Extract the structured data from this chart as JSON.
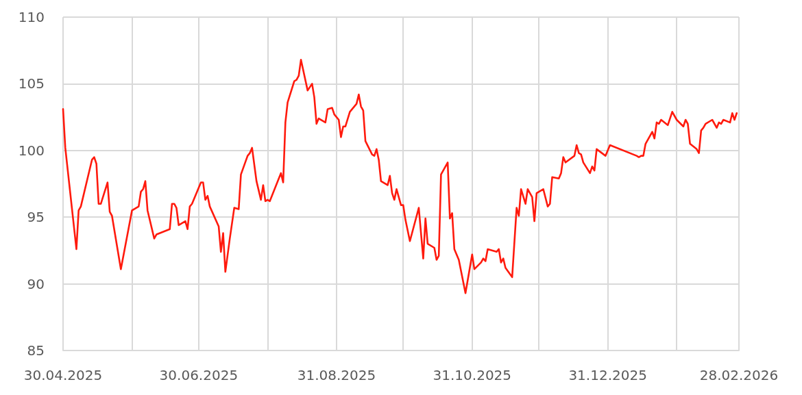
{
  "chart_data": {
    "type": "line",
    "x": [
      "2025-04-30",
      "2025-05-01",
      "2025-05-06",
      "2025-05-07",
      "2025-05-08",
      "2025-05-13",
      "2025-05-14",
      "2025-05-15",
      "2025-05-16",
      "2025-05-17",
      "2025-05-20",
      "2025-05-21",
      "2025-05-22",
      "2025-05-26",
      "2025-05-31",
      "2025-06-03",
      "2025-06-04",
      "2025-06-05",
      "2025-06-06",
      "2025-06-07",
      "2025-06-10",
      "2025-06-11",
      "2025-06-17",
      "2025-06-18",
      "2025-06-19",
      "2025-06-20",
      "2025-06-21",
      "2025-06-24",
      "2025-06-25",
      "2025-06-26",
      "2025-06-27",
      "2025-07-01",
      "2025-07-02",
      "2025-07-03",
      "2025-07-04",
      "2025-07-05",
      "2025-07-09",
      "2025-07-10",
      "2025-07-11",
      "2025-07-12",
      "2025-07-14",
      "2025-07-16",
      "2025-07-18",
      "2025-07-19",
      "2025-07-22",
      "2025-07-23",
      "2025-07-24",
      "2025-07-26",
      "2025-07-28",
      "2025-07-29",
      "2025-07-30",
      "2025-07-31",
      "2025-08-01",
      "2025-08-06",
      "2025-08-07",
      "2025-08-08",
      "2025-08-09",
      "2025-08-12",
      "2025-08-13",
      "2025-08-14",
      "2025-08-15",
      "2025-08-18",
      "2025-08-20",
      "2025-08-21",
      "2025-08-22",
      "2025-08-23",
      "2025-08-26",
      "2025-08-27",
      "2025-08-29",
      "2025-08-30",
      "2025-09-01",
      "2025-09-02",
      "2025-09-03",
      "2025-09-04",
      "2025-09-06",
      "2025-09-09",
      "2025-09-10",
      "2025-09-11",
      "2025-09-12",
      "2025-09-13",
      "2025-09-16",
      "2025-09-17",
      "2025-09-18",
      "2025-09-19",
      "2025-09-20",
      "2025-09-23",
      "2025-09-24",
      "2025-09-25",
      "2025-09-26",
      "2025-09-27",
      "2025-09-29",
      "2025-09-30",
      "2025-10-01",
      "2025-10-03",
      "2025-10-07",
      "2025-10-09",
      "2025-10-10",
      "2025-10-11",
      "2025-10-14",
      "2025-10-15",
      "2025-10-16",
      "2025-10-17",
      "2025-10-20",
      "2025-10-21",
      "2025-10-22",
      "2025-10-23",
      "2025-10-25",
      "2025-10-28",
      "2025-10-31",
      "2025-11-01",
      "2025-11-04",
      "2025-11-05",
      "2025-11-06",
      "2025-11-07",
      "2025-11-11",
      "2025-11-12",
      "2025-11-13",
      "2025-11-14",
      "2025-11-15",
      "2025-11-18",
      "2025-11-20",
      "2025-11-21",
      "2025-11-22",
      "2025-11-24",
      "2025-11-25",
      "2025-11-27",
      "2025-11-28",
      "2025-11-29",
      "2025-12-02",
      "2025-12-04",
      "2025-12-05",
      "2025-12-06",
      "2025-12-09",
      "2025-12-10",
      "2025-12-11",
      "2025-12-12",
      "2025-12-16",
      "2025-12-17",
      "2025-12-18",
      "2025-12-19",
      "2025-12-20",
      "2025-12-23",
      "2025-12-24",
      "2025-12-25",
      "2025-12-26",
      "2025-12-30",
      "2026-01-01",
      "2026-01-13",
      "2026-01-14",
      "2026-01-15",
      "2026-01-16",
      "2026-01-17",
      "2026-01-20",
      "2026-01-21",
      "2026-01-22",
      "2026-01-23",
      "2026-01-24",
      "2026-01-27",
      "2026-01-28",
      "2026-01-29",
      "2026-01-31",
      "2026-02-03",
      "2026-02-04",
      "2026-02-05",
      "2026-02-06",
      "2026-02-09",
      "2026-02-10",
      "2026-02-11",
      "2026-02-12",
      "2026-02-13",
      "2026-02-16",
      "2026-02-18",
      "2026-02-19",
      "2026-02-20",
      "2026-02-21",
      "2026-02-24",
      "2026-02-25",
      "2026-02-26",
      "2026-02-27"
    ],
    "values": [
      103.1,
      100.2,
      92.6,
      95.5,
      95.8,
      99.3,
      99.5,
      99.0,
      96.0,
      96.0,
      97.6,
      95.4,
      95.1,
      91.1,
      95.5,
      95.8,
      96.9,
      97.1,
      97.7,
      95.5,
      93.4,
      93.7,
      94.1,
      96.0,
      96.0,
      95.7,
      94.4,
      94.7,
      94.1,
      95.8,
      96.0,
      97.6,
      97.6,
      96.3,
      96.6,
      95.8,
      94.3,
      92.4,
      93.8,
      90.9,
      93.4,
      95.7,
      95.6,
      98.2,
      99.6,
      99.8,
      100.2,
      97.7,
      96.3,
      97.4,
      96.2,
      96.3,
      96.2,
      98.3,
      97.6,
      102.1,
      103.6,
      105.2,
      105.3,
      105.6,
      106.8,
      104.5,
      105.0,
      104.0,
      102.0,
      102.4,
      102.1,
      103.1,
      103.2,
      102.7,
      102.3,
      101.0,
      101.8,
      101.8,
      102.9,
      103.5,
      104.2,
      103.3,
      103.0,
      100.7,
      99.7,
      99.6,
      100.1,
      99.3,
      97.7,
      97.4,
      98.1,
      96.8,
      96.3,
      97.1,
      95.9,
      95.9,
      94.8,
      93.2,
      95.7,
      91.9,
      94.9,
      93.0,
      92.7,
      91.8,
      92.1,
      98.2,
      99.1,
      94.9,
      95.3,
      92.6,
      91.8,
      89.3,
      92.2,
      91.1,
      91.6,
      91.9,
      91.7,
      92.6,
      92.4,
      92.6,
      91.6,
      91.9,
      91.2,
      90.5,
      95.7,
      95.1,
      97.1,
      96.0,
      97.1,
      96.5,
      94.7,
      96.8,
      97.1,
      95.8,
      96.0,
      98.0,
      97.9,
      98.3,
      99.5,
      99.1,
      99.6,
      100.4,
      99.8,
      99.7,
      99.1,
      98.3,
      98.8,
      98.5,
      100.1,
      99.6,
      100.4,
      99.6,
      99.5,
      99.6,
      99.6,
      100.5,
      101.4,
      100.9,
      102.1,
      102.0,
      102.3,
      101.9,
      102.4,
      102.9,
      102.3,
      101.8,
      102.3,
      102.0,
      100.5,
      100.1,
      99.8,
      101.5,
      101.7,
      102.0,
      102.3,
      101.7,
      102.1,
      102.0,
      102.3,
      102.1,
      102.8,
      102.3,
      102.8
    ],
    "color": "#ff1a0d",
    "xlim": [
      "2025-04-30",
      "2026-02-28"
    ],
    "xticks": [
      {
        "value": "2025-04-30",
        "label": "30.04.2025"
      },
      {
        "value": "2025-05-31",
        "label": null
      },
      {
        "value": "2025-06-30",
        "label": "30.06.2025"
      },
      {
        "value": "2025-07-31",
        "label": null
      },
      {
        "value": "2025-08-31",
        "label": "31.08.2025"
      },
      {
        "value": "2025-09-30",
        "label": null
      },
      {
        "value": "2025-10-31",
        "label": "31.10.2025"
      },
      {
        "value": "2025-11-30",
        "label": null
      },
      {
        "value": "2025-12-31",
        "label": "31.12.2025"
      },
      {
        "value": "2026-01-31",
        "label": null
      },
      {
        "value": "2026-02-28",
        "label": "28.02.2026"
      }
    ],
    "ylim": [
      85,
      110
    ],
    "yticks": [
      85,
      90,
      95,
      100,
      105,
      110
    ],
    "grid": true
  }
}
